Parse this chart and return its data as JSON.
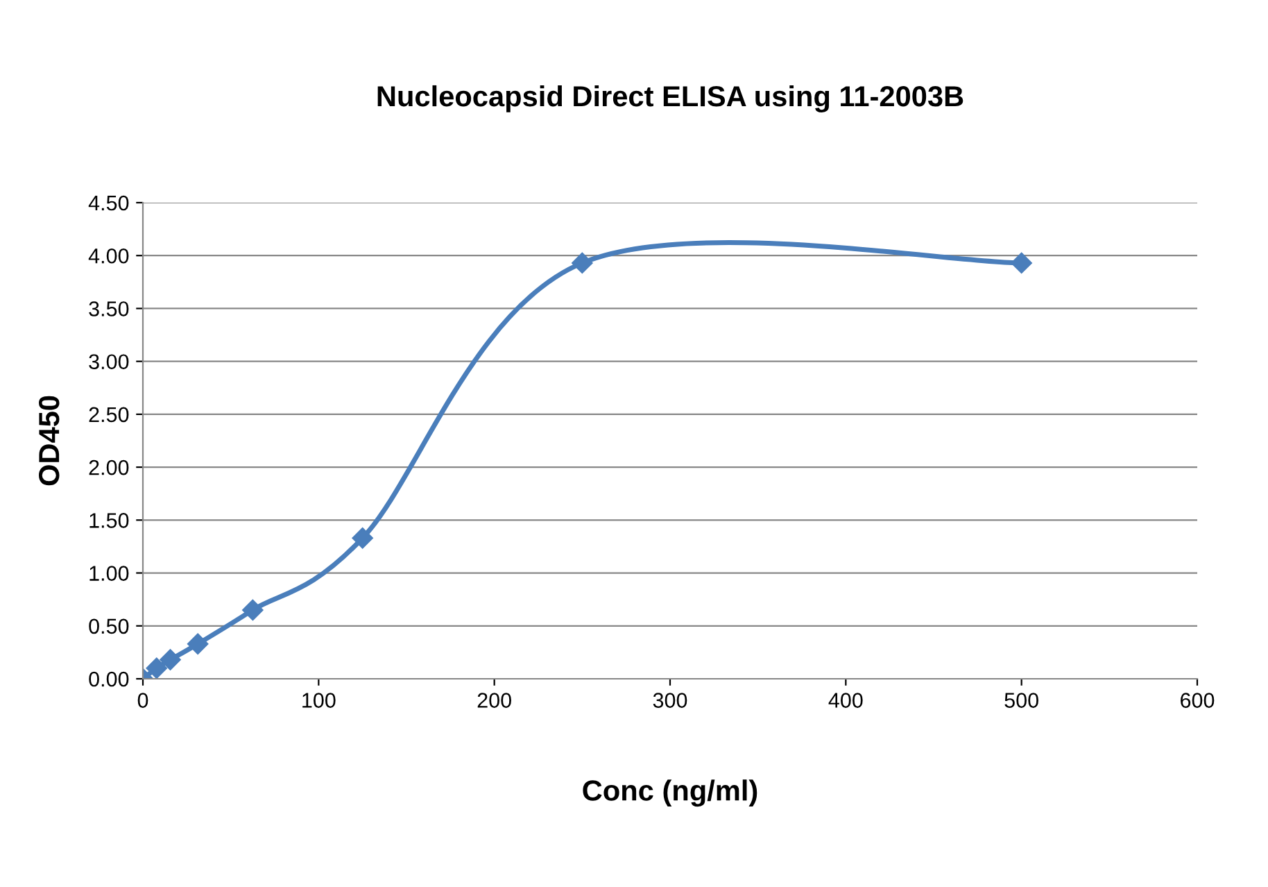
{
  "chart_data": {
    "type": "line",
    "title": "Nucleocapsid Direct ELISA using 11-2003B",
    "xlabel": "Conc (ng/ml)",
    "ylabel": "OD450",
    "x": [
      0,
      7.8,
      15.6,
      31.25,
      62.5,
      125,
      250,
      500
    ],
    "series": [
      {
        "color": "#4a7ebb",
        "values": [
          0,
          0.1,
          0.18,
          0.33,
          0.65,
          1.33,
          3.93,
          3.93
        ]
      }
    ],
    "xlim": [
      0,
      600
    ],
    "xticks": [
      0,
      100,
      200,
      300,
      400,
      500,
      600
    ],
    "ylim": [
      0,
      4.5
    ],
    "yticks": [
      {
        "value": 0,
        "label": "0.00"
      },
      {
        "value": 0.5,
        "label": "0.50"
      },
      {
        "value": 1,
        "label": "1.00"
      },
      {
        "value": 1.5,
        "label": "1.50"
      },
      {
        "value": 2,
        "label": "2.00"
      },
      {
        "value": 2.5,
        "label": "2.50"
      },
      {
        "value": 3,
        "label": "3.00"
      },
      {
        "value": 3.5,
        "label": "3.50"
      },
      {
        "value": 4,
        "label": "4.00"
      },
      {
        "value": 4.5,
        "label": "4.50"
      }
    ],
    "grid": "y",
    "legend": false,
    "marker": "diamond",
    "line_style": "solid"
  }
}
